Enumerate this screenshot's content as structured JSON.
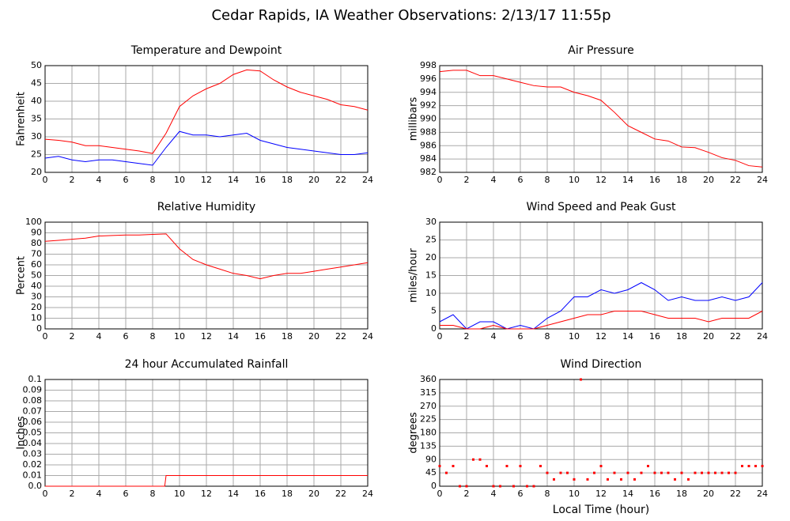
{
  "title": "Cedar Rapids, IA Weather Observations: 2/13/17 11:55p",
  "chart_data": [
    {
      "type": "line",
      "title": "Temperature and Dewpoint",
      "y_label": "Fahrenheit",
      "x": [
        0,
        1,
        2,
        3,
        4,
        5,
        6,
        7,
        8,
        9,
        10,
        11,
        12,
        13,
        14,
        15,
        16,
        17,
        18,
        19,
        20,
        21,
        22,
        23,
        24
      ],
      "series": [
        {
          "color": "#ff0000",
          "values": [
            29.3,
            29,
            28.5,
            27.5,
            27.5,
            27,
            26.5,
            26,
            25.3,
            31,
            38.5,
            41.5,
            43.5,
            45,
            47.5,
            48.8,
            48.5,
            46,
            44,
            42.5,
            41.5,
            40.5,
            39,
            38.5,
            37.5
          ]
        },
        {
          "color": "#0000ff",
          "values": [
            24,
            24.5,
            23.5,
            23,
            23.5,
            23.5,
            23,
            22.5,
            22,
            27,
            31.5,
            30.5,
            30.5,
            30,
            30.5,
            31,
            29,
            28,
            27,
            26.5,
            26,
            25.5,
            25,
            25,
            25.5
          ]
        }
      ],
      "xlim": [
        0,
        24
      ],
      "xticks": [
        0,
        2,
        4,
        6,
        8,
        10,
        12,
        14,
        16,
        18,
        20,
        22,
        24
      ],
      "ylim": [
        20,
        50
      ],
      "yticks": [
        20,
        25,
        30,
        35,
        40,
        45,
        50
      ],
      "grid": true
    },
    {
      "type": "line",
      "title": "Air Pressure",
      "y_label": "millibars",
      "x": [
        0,
        1,
        2,
        3,
        4,
        5,
        6,
        7,
        8,
        9,
        10,
        11,
        12,
        13,
        14,
        15,
        16,
        17,
        18,
        19,
        20,
        21,
        22,
        23,
        24
      ],
      "series": [
        {
          "color": "#ff0000",
          "values": [
            997.1,
            997.3,
            997.3,
            996.5,
            996.5,
            996,
            995.5,
            995,
            994.8,
            994.8,
            994,
            993.5,
            992.8,
            991,
            989,
            988,
            987,
            986.7,
            985.8,
            985.7,
            985,
            984.2,
            983.8,
            983,
            982.8
          ]
        }
      ],
      "xlim": [
        0,
        24
      ],
      "xticks": [
        0,
        2,
        4,
        6,
        8,
        10,
        12,
        14,
        16,
        18,
        20,
        22,
        24
      ],
      "ylim": [
        982,
        998
      ],
      "yticks": [
        982,
        984,
        986,
        988,
        990,
        992,
        994,
        996,
        998
      ],
      "grid": true
    },
    {
      "type": "line",
      "title": "Relative Humidity",
      "y_label": "Percent",
      "x": [
        0,
        1,
        2,
        3,
        4,
        5,
        6,
        7,
        8,
        9,
        10,
        11,
        12,
        13,
        14,
        15,
        16,
        17,
        18,
        19,
        20,
        21,
        22,
        23,
        24
      ],
      "series": [
        {
          "color": "#ff0000",
          "values": [
            82,
            83,
            84,
            85,
            87,
            87.5,
            88,
            88,
            88.5,
            89,
            75,
            65,
            60,
            56,
            52,
            50,
            47,
            50,
            52,
            52,
            54,
            56,
            58,
            60,
            62
          ]
        }
      ],
      "xlim": [
        0,
        24
      ],
      "xticks": [
        0,
        2,
        4,
        6,
        8,
        10,
        12,
        14,
        16,
        18,
        20,
        22,
        24
      ],
      "ylim": [
        0,
        100
      ],
      "yticks": [
        0,
        10,
        20,
        30,
        40,
        50,
        60,
        70,
        80,
        90,
        100
      ],
      "grid": true
    },
    {
      "type": "line",
      "title": "Wind Speed and Peak Gust",
      "y_label": "miles/hour",
      "x": [
        0,
        1,
        2,
        3,
        4,
        5,
        6,
        7,
        8,
        9,
        10,
        11,
        12,
        13,
        14,
        15,
        16,
        17,
        18,
        19,
        20,
        21,
        22,
        23,
        24
      ],
      "series": [
        {
          "color": "#0000ff",
          "values": [
            2,
            4,
            0,
            2,
            2,
            0,
            1,
            0,
            3,
            5,
            9,
            9,
            11,
            10,
            11,
            13,
            11,
            8,
            9,
            8,
            8,
            9,
            8,
            9,
            13
          ]
        },
        {
          "color": "#ff0000",
          "values": [
            1,
            1,
            0,
            0,
            1,
            0,
            0,
            0,
            1,
            2,
            3,
            4,
            4,
            5,
            5,
            5,
            4,
            3,
            3,
            3,
            2,
            3,
            3,
            3,
            5
          ]
        }
      ],
      "xlim": [
        0,
        24
      ],
      "xticks": [
        0,
        2,
        4,
        6,
        8,
        10,
        12,
        14,
        16,
        18,
        20,
        22,
        24
      ],
      "ylim": [
        0,
        30
      ],
      "yticks": [
        0,
        5,
        10,
        15,
        20,
        25,
        30
      ],
      "grid": true
    },
    {
      "type": "line",
      "title": "24 hour Accumulated Rainfall",
      "y_label": "Inches",
      "x": [
        0,
        8.9,
        9,
        24
      ],
      "series": [
        {
          "color": "#ff0000",
          "values": [
            0,
            0,
            0.01,
            0.01
          ]
        }
      ],
      "xlim": [
        0,
        24
      ],
      "xticks": [
        0,
        2,
        4,
        6,
        8,
        10,
        12,
        14,
        16,
        18,
        20,
        22,
        24
      ],
      "ylim": [
        0,
        0.1
      ],
      "yticks": [
        {
          "value": 0,
          "label": "0.0"
        },
        0.01,
        0.02,
        0.03,
        0.04,
        0.05,
        0.06,
        0.07,
        0.08,
        0.09,
        0.1
      ],
      "grid": true
    },
    {
      "type": "scatter",
      "title": "Wind Direction",
      "y_label": "degrees",
      "x_label": "Local Time (hour)",
      "x": [
        0,
        0.5,
        1,
        1.5,
        2,
        2.5,
        3,
        3.5,
        4,
        4.5,
        5,
        5.5,
        6,
        6.5,
        7,
        7.5,
        8,
        8.5,
        9,
        9.5,
        10,
        10.5,
        11,
        11.5,
        12,
        12.5,
        13,
        13.5,
        14,
        14.5,
        15,
        15.5,
        16,
        16.5,
        17,
        17.5,
        18,
        18.5,
        19,
        19.5,
        20,
        20.5,
        21,
        21.5,
        22,
        22.5,
        23,
        23.5,
        24
      ],
      "series": [
        {
          "color": "#ff0000",
          "values": [
            68,
            45,
            68,
            0,
            0,
            90,
            90,
            68,
            0,
            0,
            68,
            0,
            68,
            0,
            0,
            68,
            45,
            23,
            45,
            45,
            23,
            360,
            23,
            45,
            68,
            23,
            45,
            23,
            45,
            23,
            45,
            68,
            45,
            45,
            45,
            23,
            45,
            23,
            45,
            45,
            45,
            45,
            45,
            45,
            45,
            68,
            68,
            68,
            68
          ]
        }
      ],
      "xlim": [
        0,
        24
      ],
      "xticks": [
        0,
        2,
        4,
        6,
        8,
        10,
        12,
        14,
        16,
        18,
        20,
        22,
        24
      ],
      "ylim": [
        0,
        360
      ],
      "yticks": [
        0,
        45,
        90,
        135,
        180,
        225,
        270,
        315,
        360
      ],
      "grid": true
    }
  ]
}
